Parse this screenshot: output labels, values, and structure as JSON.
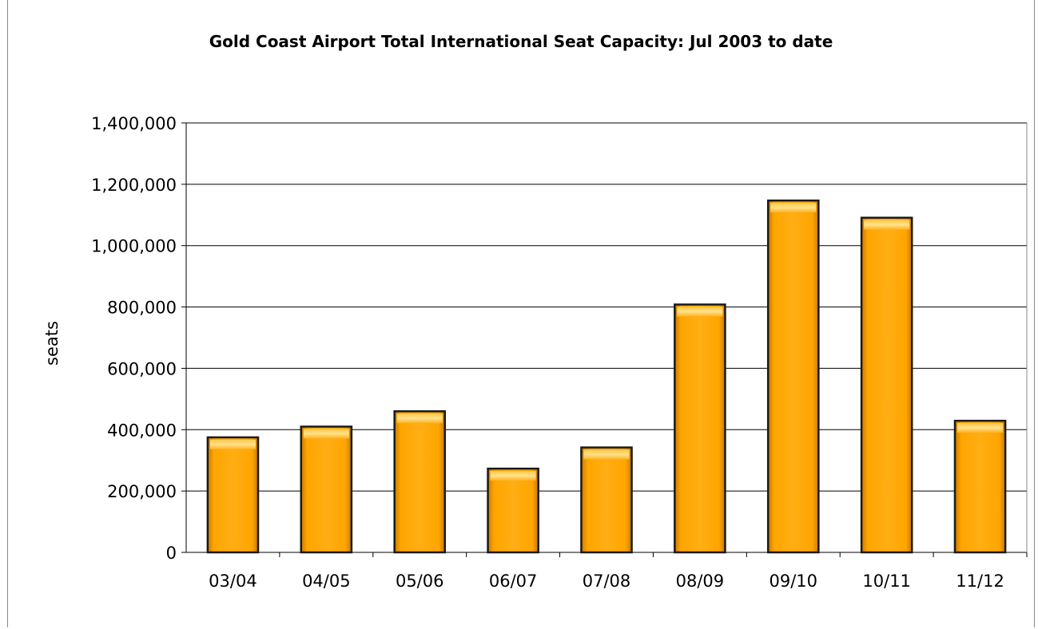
{
  "chart_data": {
    "type": "bar",
    "title": "Gold Coast Airport Total International Seat Capacity: Jul 2003 to date",
    "xlabel": "",
    "ylabel": "seats",
    "categories": [
      "03/04",
      "04/05",
      "05/06",
      "06/07",
      "07/08",
      "08/09",
      "09/10",
      "10/11",
      "11/12"
    ],
    "values": [
      375000,
      410000,
      460000,
      273000,
      342000,
      808000,
      1147000,
      1091000,
      429000
    ],
    "ylim": [
      0,
      1400000
    ],
    "yticks": [
      0,
      200000,
      400000,
      600000,
      800000,
      1000000,
      1200000,
      1400000
    ],
    "ytick_labels": [
      "0",
      "200,000",
      "400,000",
      "600,000",
      "800,000",
      "1,000,000",
      "1,200,000",
      "1,400,000"
    ],
    "grid": true,
    "legend": "none",
    "colors": {
      "bar": "#ffa500",
      "bar_highlight": "#ffe082",
      "bar_edge": "#1a1a1a",
      "grid": "#000000"
    }
  }
}
